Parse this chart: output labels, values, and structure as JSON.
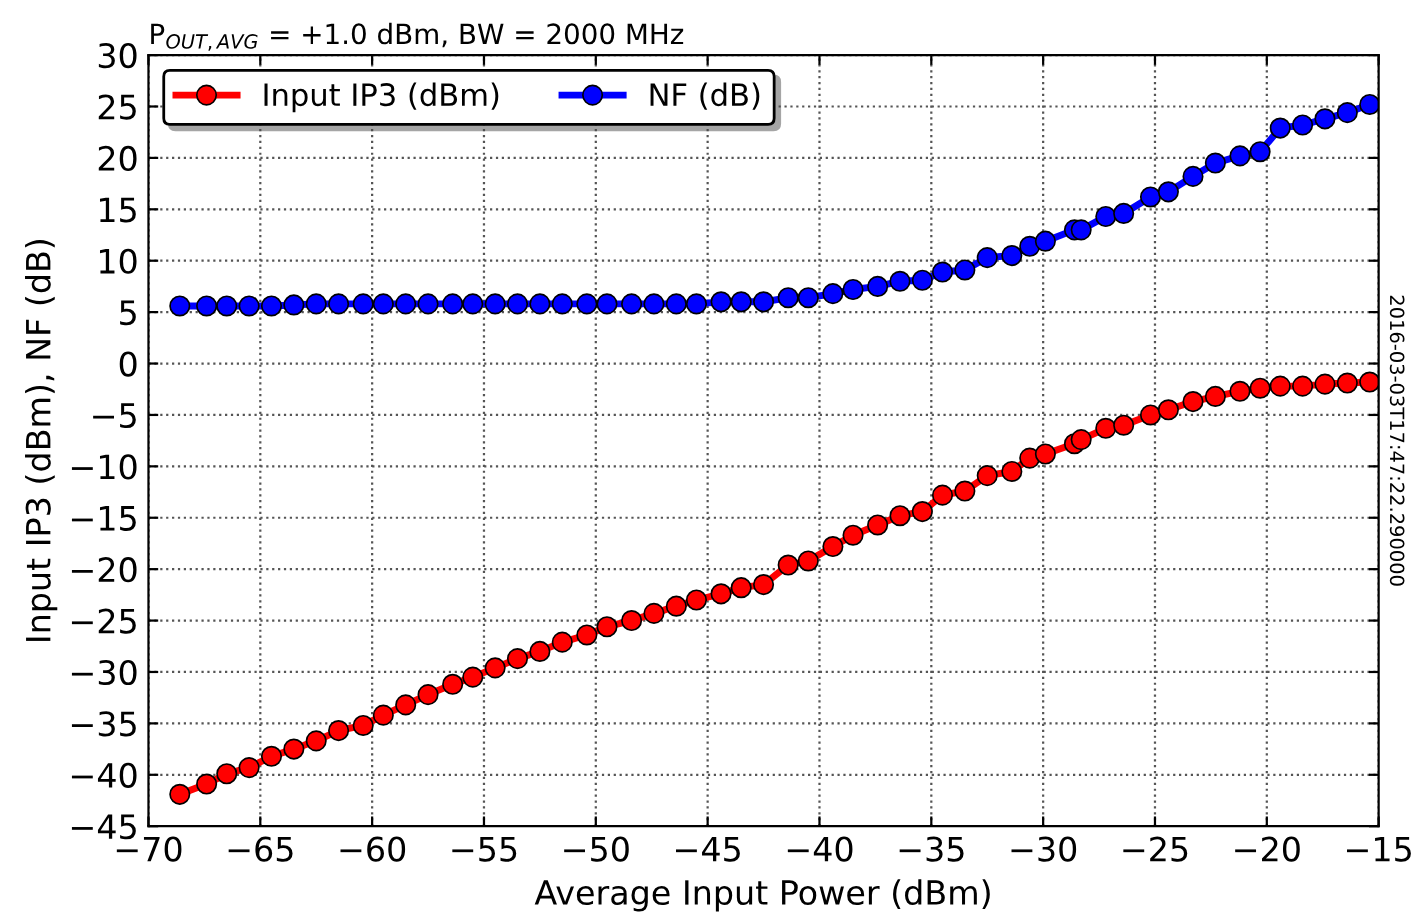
{
  "chart_data": {
    "type": "line",
    "title": "P$_{OUT,AVG}$ = +1.0 dBm, BW = 2000 MHz",
    "xlabel": "Average Input Power (dBm)",
    "ylabel": "Input IP3 (dBm), NF (dB)",
    "x": [
      -68.6,
      -67.4,
      -66.5,
      -65.5,
      -64.5,
      -63.5,
      -62.5,
      -61.5,
      -60.4,
      -59.5,
      -58.5,
      -57.5,
      -56.4,
      -55.5,
      -54.5,
      -53.5,
      -52.5,
      -51.5,
      -50.4,
      -49.5,
      -48.4,
      -47.4,
      -46.4,
      -45.5,
      -44.4,
      -43.5,
      -42.5,
      -41.4,
      -40.5,
      -39.4,
      -38.5,
      -37.4,
      -36.4,
      -35.4,
      -34.5,
      -33.5,
      -32.5,
      -31.4,
      -30.6,
      -29.9,
      -28.6,
      -28.3,
      -27.2,
      -26.4,
      -25.2,
      -24.4,
      -23.3,
      -22.3,
      -21.2,
      -20.3,
      -19.4,
      -18.4,
      -17.4,
      -16.4,
      -15.4
    ],
    "series": [
      {
        "name": "Input IP3 (dBm)",
        "color": "#ff0000",
        "values": [
          -41.9,
          -40.9,
          -39.9,
          -39.3,
          -38.2,
          -37.5,
          -36.7,
          -35.7,
          -35.2,
          -34.2,
          -33.2,
          -32.2,
          -31.2,
          -30.5,
          -29.6,
          -28.7,
          -28.0,
          -27.1,
          -26.4,
          -25.6,
          -25.0,
          -24.3,
          -23.6,
          -23.0,
          -22.4,
          -21.8,
          -21.5,
          -19.6,
          -19.2,
          -17.8,
          -16.7,
          -15.7,
          -14.8,
          -14.4,
          -12.8,
          -12.4,
          -10.9,
          -10.5,
          -9.2,
          -8.8,
          -7.8,
          -7.4,
          -6.3,
          -6.0,
          -5.0,
          -4.5,
          -3.7,
          -3.2,
          -2.7,
          -2.4,
          -2.2,
          -2.2,
          -2.0,
          -1.9,
          -1.8
        ]
      },
      {
        "name": "NF (dB)",
        "color": "#0000ff",
        "values": [
          5.6,
          5.6,
          5.6,
          5.6,
          5.6,
          5.7,
          5.8,
          5.8,
          5.8,
          5.8,
          5.8,
          5.8,
          5.8,
          5.8,
          5.8,
          5.8,
          5.8,
          5.8,
          5.8,
          5.8,
          5.8,
          5.8,
          5.8,
          5.8,
          6.0,
          6.0,
          6.0,
          6.4,
          6.4,
          6.8,
          7.2,
          7.5,
          8.0,
          8.1,
          8.9,
          9.1,
          10.3,
          10.5,
          11.4,
          11.9,
          13.0,
          13.0,
          14.3,
          14.6,
          16.2,
          16.7,
          18.2,
          19.5,
          20.2,
          20.6,
          22.9,
          23.2,
          23.8,
          24.4,
          25.2
        ]
      }
    ],
    "xlim": [
      -70,
      -15
    ],
    "xticks": [
      -70,
      -65,
      -60,
      -55,
      -50,
      -45,
      -40,
      -35,
      -30,
      -25,
      -20,
      -15
    ],
    "ylim": [
      -45,
      30
    ],
    "yticks": [
      -45,
      -40,
      -35,
      -30,
      -25,
      -20,
      -15,
      -10,
      -5,
      0,
      5,
      10,
      15,
      20,
      25,
      30
    ],
    "grid": true,
    "legend": "top left",
    "marker": "circle",
    "line_style": "solid",
    "annotations": [
      "2016-03-03T17:47:22.290000"
    ]
  }
}
